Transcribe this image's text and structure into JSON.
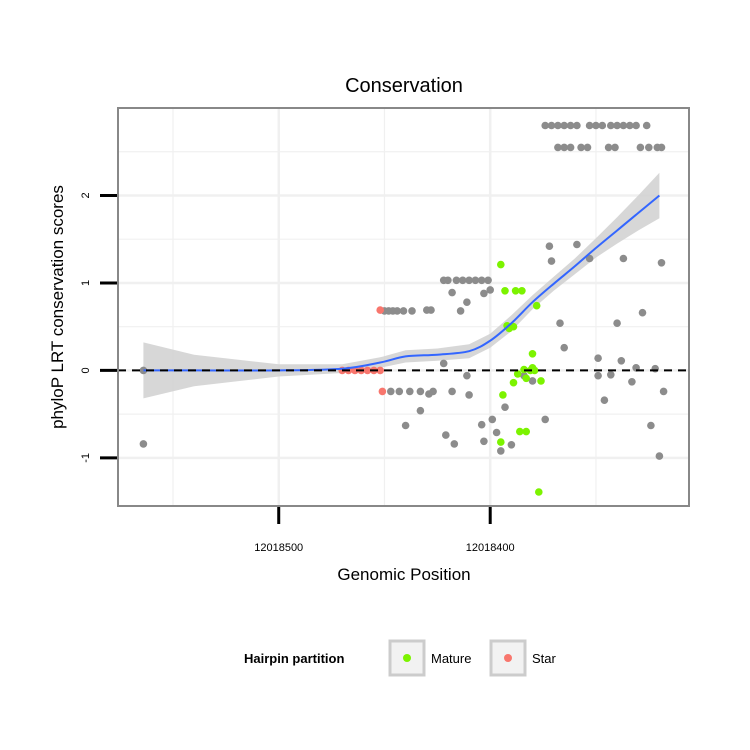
{
  "chart_data": {
    "type": "scatter",
    "title": "Conservation",
    "xlabel": "Genomic Position",
    "ylabel": "phyloP LRT conservation scores",
    "x_tick_labels": [
      "12018500",
      "12018400"
    ],
    "x_ticks": [
      12018500,
      12018400
    ],
    "x_axis_reversed": true,
    "xlim": [
      12018576,
      12018306
    ],
    "ylim": [
      -1.55,
      3.0
    ],
    "y_ticks": [
      -1,
      0,
      1,
      2
    ],
    "y_tick_labels": [
      "-1",
      "0",
      "1",
      "2"
    ],
    "reference_line": {
      "y": 0,
      "style": "dashed",
      "color": "#000000"
    },
    "legend": {
      "title": "Hairpin partition",
      "position": "bottom",
      "entries": [
        {
          "label": "Mature",
          "color": "#7cf300"
        },
        {
          "label": "Star",
          "color": "#f8766d"
        }
      ]
    },
    "colors": {
      "other": "#8c8c8c",
      "mature": "#7cf300",
      "star": "#f8766d",
      "smooth": "#3366ff",
      "ribbon": "#d0d0d0",
      "grid": "#f0f0f0",
      "panel_border": "#888888"
    },
    "series": [
      {
        "name": "Other",
        "color": "#8c8c8c",
        "points": [
          [
            12018564,
            -0.84
          ],
          [
            12018564,
            0.0
          ],
          [
            12018450,
            0.68
          ],
          [
            12018448,
            0.68
          ],
          [
            12018446,
            0.68
          ],
          [
            12018444,
            0.68
          ],
          [
            12018441,
            0.68
          ],
          [
            12018437,
            0.68
          ],
          [
            12018430,
            0.69
          ],
          [
            12018428,
            0.69
          ],
          [
            12018422,
            1.03
          ],
          [
            12018420,
            1.03
          ],
          [
            12018416,
            1.03
          ],
          [
            12018413,
            1.03
          ],
          [
            12018410,
            1.03
          ],
          [
            12018407,
            1.03
          ],
          [
            12018404,
            1.03
          ],
          [
            12018401,
            1.03
          ],
          [
            12018418,
            0.89
          ],
          [
            12018411,
            0.78
          ],
          [
            12018414,
            0.68
          ],
          [
            12018403,
            0.88
          ],
          [
            12018400,
            0.92
          ],
          [
            12018447,
            -0.24
          ],
          [
            12018443,
            -0.24
          ],
          [
            12018438,
            -0.24
          ],
          [
            12018433,
            -0.24
          ],
          [
            12018427,
            -0.24
          ],
          [
            12018418,
            -0.24
          ],
          [
            12018410,
            -0.28
          ],
          [
            12018440,
            -0.63
          ],
          [
            12018433,
            -0.46
          ],
          [
            12018429,
            -0.27
          ],
          [
            12018421,
            -0.74
          ],
          [
            12018417,
            -0.84
          ],
          [
            12018422,
            0.08
          ],
          [
            12018411,
            -0.06
          ],
          [
            12018404,
            -0.62
          ],
          [
            12018403,
            -0.81
          ],
          [
            12018399,
            -0.56
          ],
          [
            12018397,
            -0.71
          ],
          [
            12018395,
            -0.92
          ],
          [
            12018393,
            -0.42
          ],
          [
            12018390,
            -0.85
          ],
          [
            12018384,
            -0.06
          ],
          [
            12018380,
            -0.12
          ],
          [
            12018374,
            -0.56
          ],
          [
            12018372,
            1.42
          ],
          [
            12018371,
            1.25
          ],
          [
            12018367,
            0.54
          ],
          [
            12018365,
            0.26
          ],
          [
            12018359,
            1.44
          ],
          [
            12018353,
            1.28
          ],
          [
            12018349,
            -0.06
          ],
          [
            12018349,
            0.14
          ],
          [
            12018346,
            -0.34
          ],
          [
            12018343,
            -0.05
          ],
          [
            12018340,
            0.54
          ],
          [
            12018338,
            0.11
          ],
          [
            12018337,
            1.28
          ],
          [
            12018333,
            -0.13
          ],
          [
            12018331,
            0.03
          ],
          [
            12018328,
            0.66
          ],
          [
            12018324,
            -0.63
          ],
          [
            12018322,
            0.02
          ],
          [
            12018320,
            -0.98
          ],
          [
            12018319,
            1.23
          ],
          [
            12018318,
            -0.24
          ],
          [
            12018374,
            2.8
          ],
          [
            12018371,
            2.8
          ],
          [
            12018368,
            2.8
          ],
          [
            12018365,
            2.8
          ],
          [
            12018362,
            2.8
          ],
          [
            12018359,
            2.8
          ],
          [
            12018353,
            2.8
          ],
          [
            12018350,
            2.8
          ],
          [
            12018347,
            2.8
          ],
          [
            12018343,
            2.8
          ],
          [
            12018340,
            2.8
          ],
          [
            12018337,
            2.8
          ],
          [
            12018334,
            2.8
          ],
          [
            12018331,
            2.8
          ],
          [
            12018326,
            2.8
          ],
          [
            12018368,
            2.55
          ],
          [
            12018365,
            2.55
          ],
          [
            12018362,
            2.55
          ],
          [
            12018357,
            2.55
          ],
          [
            12018354,
            2.55
          ],
          [
            12018344,
            2.55
          ],
          [
            12018341,
            2.55
          ],
          [
            12018329,
            2.55
          ],
          [
            12018325,
            2.55
          ],
          [
            12018321,
            2.55
          ],
          [
            12018319,
            2.55
          ]
        ]
      },
      {
        "name": "Mature",
        "color": "#7cf300",
        "points": [
          [
            12018395,
            1.21
          ],
          [
            12018393,
            0.91
          ],
          [
            12018392,
            0.51
          ],
          [
            12018391,
            0.48
          ],
          [
            12018389,
            0.5
          ],
          [
            12018388,
            0.91
          ],
          [
            12018385,
            0.91
          ],
          [
            12018384,
            0.01
          ],
          [
            12018389,
            -0.14
          ],
          [
            12018387,
            -0.04
          ],
          [
            12018383,
            -0.09
          ],
          [
            12018381,
            0.0
          ],
          [
            12018380,
            0.03
          ],
          [
            12018379,
            0.0
          ],
          [
            12018380,
            0.19
          ],
          [
            12018378,
            0.74
          ],
          [
            12018394,
            -0.28
          ],
          [
            12018395,
            -0.82
          ],
          [
            12018386,
            -0.7
          ],
          [
            12018383,
            -0.7
          ],
          [
            12018377,
            -1.39
          ],
          [
            12018376,
            -0.12
          ]
        ]
      },
      {
        "name": "Star",
        "color": "#f8766d",
        "points": [
          [
            12018452,
            0.69
          ],
          [
            12018451,
            -0.24
          ],
          [
            12018470,
            0.0
          ],
          [
            12018467,
            0.0
          ],
          [
            12018464,
            0.0
          ],
          [
            12018461,
            0.0
          ],
          [
            12018458,
            0.0
          ],
          [
            12018455,
            0.0
          ],
          [
            12018452,
            0.0
          ]
        ]
      }
    ],
    "smooth_fit": {
      "x": [
        12018564,
        12018540,
        12018500,
        12018470,
        12018452,
        12018440,
        12018425,
        12018410,
        12018400,
        12018390,
        12018380,
        12018370,
        12018360,
        12018350,
        12018340,
        12018330,
        12018320
      ],
      "y": [
        0.0,
        0.0,
        0.0,
        0.02,
        0.09,
        0.16,
        0.18,
        0.22,
        0.34,
        0.54,
        0.78,
        0.99,
        1.19,
        1.4,
        1.6,
        1.8,
        2.0
      ],
      "se": [
        0.32,
        0.18,
        0.07,
        0.05,
        0.06,
        0.07,
        0.07,
        0.08,
        0.08,
        0.09,
        0.08,
        0.08,
        0.09,
        0.11,
        0.15,
        0.2,
        0.26
      ]
    }
  }
}
